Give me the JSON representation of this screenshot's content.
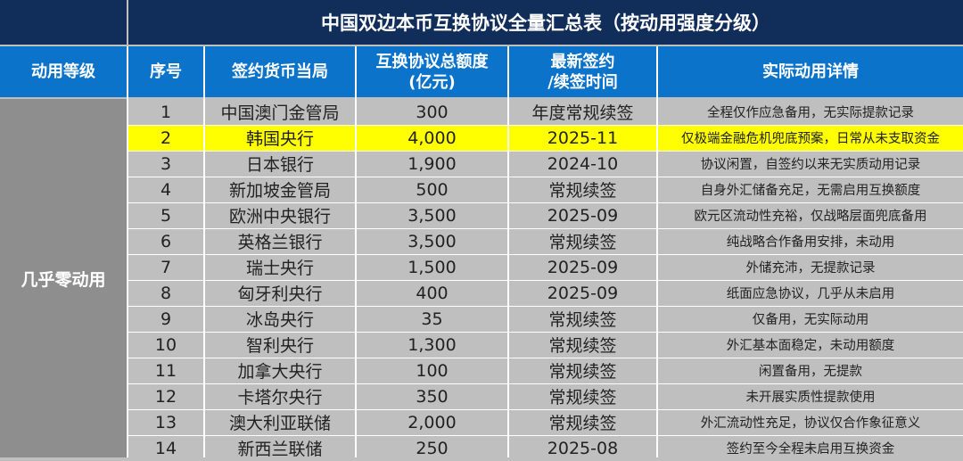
{
  "table": {
    "title": "中国双边本币互换协议全量汇总表（按动用强度分级）",
    "headers": {
      "level": "动用等级",
      "seq": "序号",
      "authority": "签约货币当局",
      "amount_line1": "互换协议总额度",
      "amount_line2": "(亿元)",
      "time_line1": "最新签约",
      "time_line2": "/续签时间",
      "detail": "实际动用详情"
    },
    "level_label": "几乎零动用",
    "highlight_color": "#ffff00",
    "rows": [
      {
        "seq": "1",
        "authority": "中国澳门金管局",
        "amount": "300",
        "time": "年度常规续签",
        "detail": "全程仅作应急备用，无实际提款记录"
      },
      {
        "seq": "2",
        "authority": "韩国央行",
        "amount": "4,000",
        "time": "2025-11",
        "detail": "仅极端金融危机兜底预案，日常从未支取资金",
        "highlight": true
      },
      {
        "seq": "3",
        "authority": "日本银行",
        "amount": "1,900",
        "time": "2024-10",
        "detail": "协议闲置，自签约以来无实质动用记录"
      },
      {
        "seq": "4",
        "authority": "新加坡金管局",
        "amount": "500",
        "time": "常规续签",
        "detail": "自身外汇储备充足，无需启用互换额度"
      },
      {
        "seq": "5",
        "authority": "欧洲中央银行",
        "amount": "3,500",
        "time": "2025-09",
        "detail": "欧元区流动性充裕，仅战略层面兜底备用"
      },
      {
        "seq": "6",
        "authority": "英格兰银行",
        "amount": "3,500",
        "time": "常规续签",
        "detail": "纯战略合作备用安排，未动用"
      },
      {
        "seq": "7",
        "authority": "瑞士央行",
        "amount": "1,500",
        "time": "2025-09",
        "detail": "外储充沛，无提款记录"
      },
      {
        "seq": "8",
        "authority": "匈牙利央行",
        "amount": "400",
        "time": "2025-09",
        "detail": "纸面应急协议，几乎从未启用"
      },
      {
        "seq": "9",
        "authority": "冰岛央行",
        "amount": "35",
        "time": "常规续签",
        "detail": "仅备用，无实际动用"
      },
      {
        "seq": "10",
        "authority": "智利央行",
        "amount": "1,300",
        "time": "常规续签",
        "detail": "外汇基本面稳定，未动用额度"
      },
      {
        "seq": "11",
        "authority": "加拿大央行",
        "amount": "100",
        "time": "常规续签",
        "detail": "闲置备用，无提款"
      },
      {
        "seq": "12",
        "authority": "卡塔尔央行",
        "amount": "350",
        "time": "常规续签",
        "detail": "未开展实质性提款使用"
      },
      {
        "seq": "13",
        "authority": "澳大利亚联储",
        "amount": "2,000",
        "time": "常规续签",
        "detail": "外汇流动性充足，协议仅合作象征意义"
      },
      {
        "seq": "14",
        "authority": "新西兰联储",
        "amount": "250",
        "time": "2025-08",
        "detail": "签约至今全程未启用互换资金"
      }
    ]
  }
}
